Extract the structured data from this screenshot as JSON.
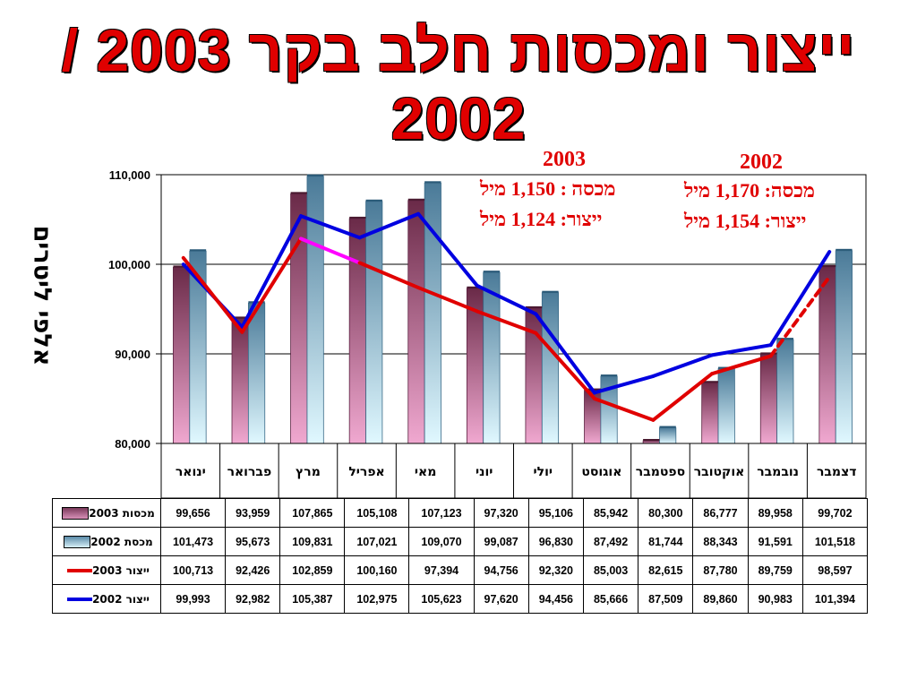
{
  "colors": {
    "title": "#e00000",
    "import_2003_bar": "#c06088",
    "import_2002_bar": "#7ab0c8",
    "production_2003_line": "#e00000",
    "production_2002_line": "#0000e0",
    "highlight_segment": "#ff00ff"
  },
  "title": "ייצור ומכסות חלב בקר 2003 / 2002",
  "y_axis_label": "אלפי ליטרים",
  "annotations": {
    "y2003": {
      "year": "2003",
      "quota": "מכסה : 1,150 מיל",
      "production": "ייצור: 1,124 מיל"
    },
    "y2002": {
      "year": "2002",
      "quota": "מכסה: 1,170 מיל",
      "production": "ייצור: 1,154 מיל"
    }
  },
  "chart_data": {
    "type": "bar",
    "categories": [
      "ינואר",
      "פברואר",
      "מרץ",
      "אפריל",
      "מאי",
      "יוני",
      "יולי",
      "אוגוסט",
      "ספטמבר",
      "אוקטובר",
      "נובמבר",
      "דצמבר"
    ],
    "category_order": "right-to-left",
    "y_ticks": [
      "80,000",
      "90,000",
      "100,000",
      "110,000"
    ],
    "ylim": [
      80000,
      110000
    ],
    "grid": true,
    "series": [
      {
        "name": "מכסות 2003",
        "kind": "bar",
        "values": [
          99656,
          93959,
          107865,
          105108,
          107123,
          97320,
          95106,
          85942,
          80300,
          86777,
          89958,
          99702
        ],
        "labels": [
          "99,656",
          "93,959",
          "107,865",
          "105,108",
          "107,123",
          "97,320",
          "95,106",
          "85,942",
          "80,300",
          "86,777",
          "89,958",
          "99,702"
        ]
      },
      {
        "name": "מכסת 2002",
        "kind": "bar",
        "values": [
          101473,
          95673,
          109831,
          107021,
          109070,
          99087,
          96830,
          87492,
          81744,
          88343,
          91591,
          101518
        ],
        "labels": [
          "101,473",
          "95,673",
          "109,831",
          "107,021",
          "109,070",
          "99,087",
          "96,830",
          "87,492",
          "81,744",
          "88,343",
          "91,591",
          "101,518"
        ]
      },
      {
        "name": "ייצור 2003",
        "kind": "line",
        "values": [
          100713,
          92426,
          102859,
          100160,
          97394,
          94756,
          92320,
          85003,
          82615,
          87780,
          89759,
          98597
        ],
        "labels": [
          "100,713",
          "92,426",
          "102,859",
          "100,160",
          "97,394",
          "94,756",
          "92,320",
          "85,003",
          "82,615",
          "87,780",
          "89,759",
          "98,597"
        ]
      },
      {
        "name": "ייצור 2002",
        "kind": "line",
        "values": [
          99993,
          92982,
          105387,
          102975,
          105623,
          97620,
          94456,
          85666,
          87509,
          89860,
          90983,
          101394
        ],
        "labels": [
          "99,993",
          "92,982",
          "105,387",
          "102,975",
          "105,623",
          "97,620",
          "94,456",
          "85,666",
          "87,509",
          "89,860",
          "90,983",
          "101,394"
        ]
      }
    ]
  }
}
